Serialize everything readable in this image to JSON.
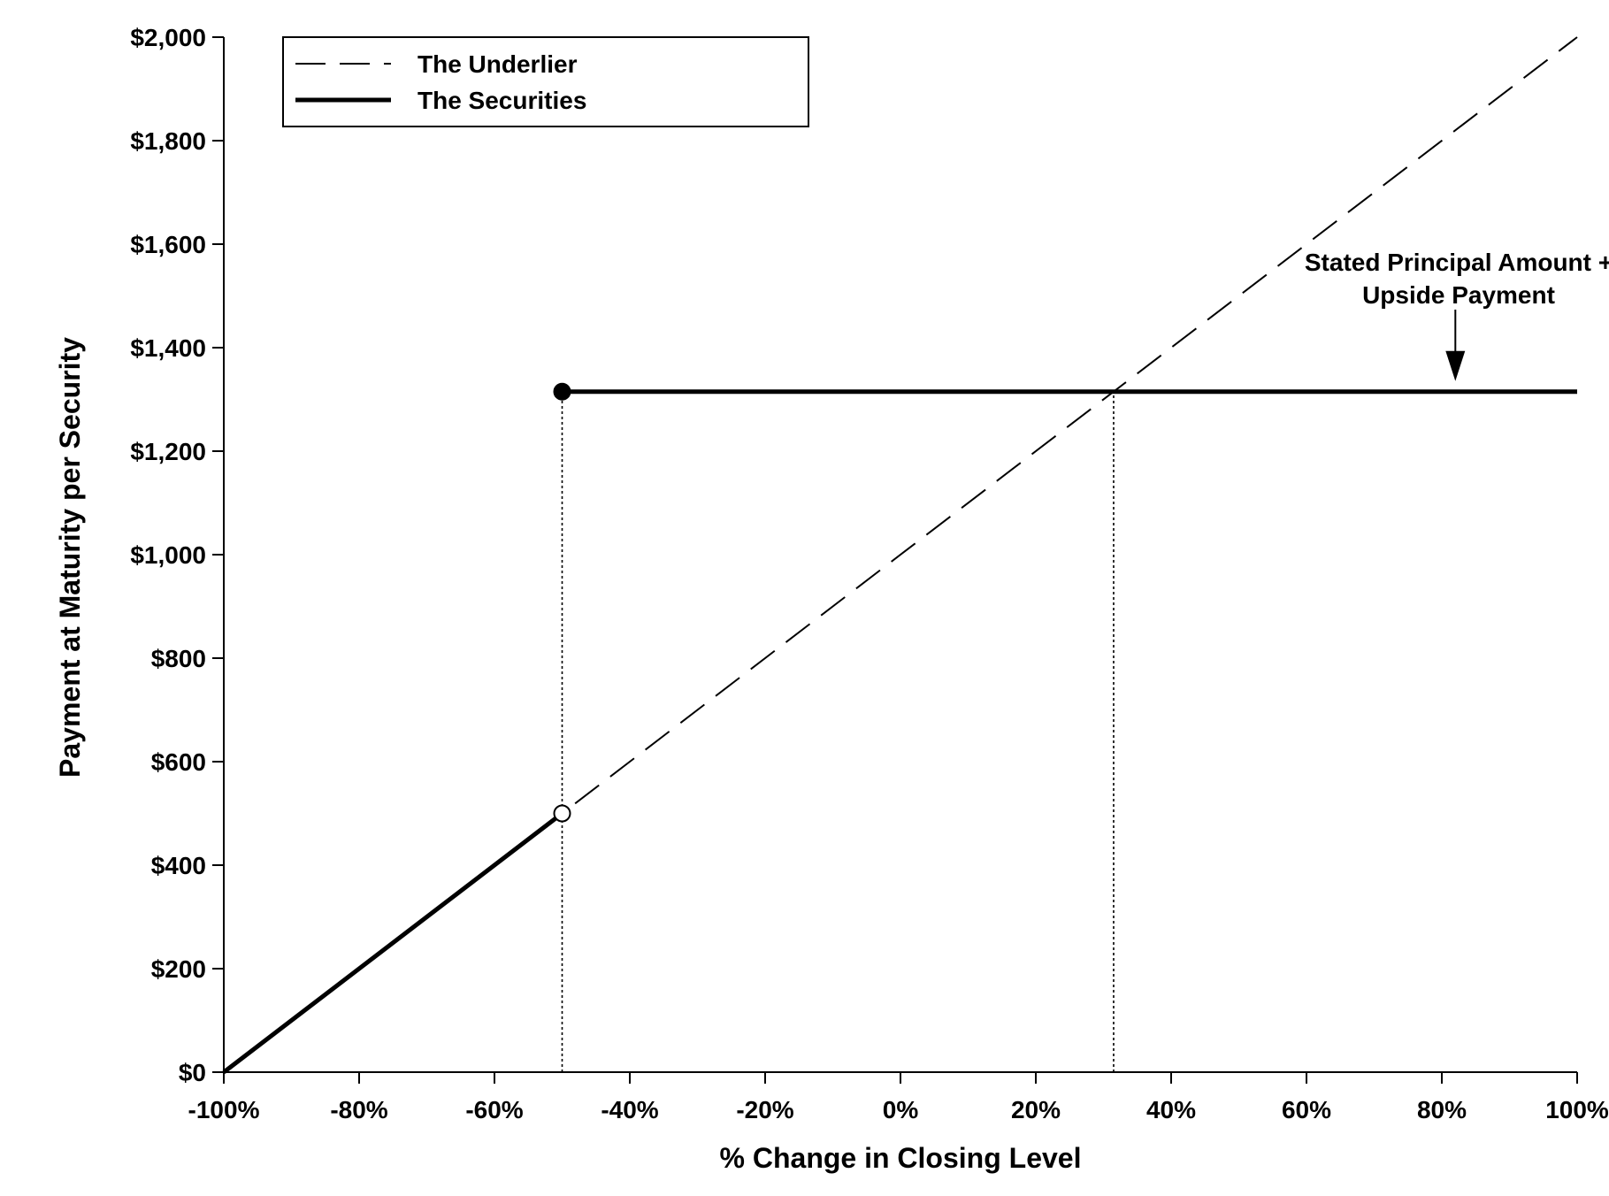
{
  "chart_data": {
    "type": "line",
    "xlabel": "% Change in Closing Level",
    "ylabel": "Payment at Maturity per Security",
    "xlim": [
      -100,
      100
    ],
    "ylim": [
      0,
      2000
    ],
    "x_ticks": [
      -100,
      -80,
      -60,
      -40,
      -20,
      0,
      20,
      40,
      60,
      80,
      100
    ],
    "x_tick_labels": [
      "-100%",
      "-80%",
      "-60%",
      "-40%",
      "-20%",
      "0%",
      "20%",
      "40%",
      "60%",
      "80%",
      "100%"
    ],
    "y_ticks": [
      0,
      200,
      400,
      600,
      800,
      1000,
      1200,
      1400,
      1600,
      1800,
      2000
    ],
    "y_tick_labels": [
      "$0",
      "$200",
      "$400",
      "$600",
      "$800",
      "$1,000",
      "$1,200",
      "$1,400",
      "$1,600",
      "$1,800",
      "$2,000"
    ],
    "grid": false,
    "legend_position": "top-left",
    "series": [
      {
        "name": "The Underlier",
        "style": "dashed",
        "points": [
          [
            -100,
            0
          ],
          [
            100,
            2000
          ]
        ]
      },
      {
        "name": "The Securities",
        "style": "solid",
        "segments": [
          [
            [
              -100,
              0
            ],
            [
              -50,
              500
            ]
          ],
          [
            [
              -50,
              1315
            ],
            [
              100,
              1315
            ]
          ]
        ],
        "markers": [
          {
            "x": -50,
            "y": 1315,
            "fill": "filled"
          },
          {
            "x": -50,
            "y": 500,
            "fill": "open"
          }
        ]
      }
    ],
    "reference_lines": [
      {
        "x": -50,
        "y_top": 1315
      },
      {
        "x": 31.5,
        "y_top": 1315
      }
    ],
    "annotation": {
      "lines": [
        "Stated Principal Amount +",
        "Upside Payment"
      ],
      "arrow_x": 82,
      "arrow_y": 1315
    },
    "colors": {
      "line": "#000000",
      "background": "#ffffff"
    }
  }
}
